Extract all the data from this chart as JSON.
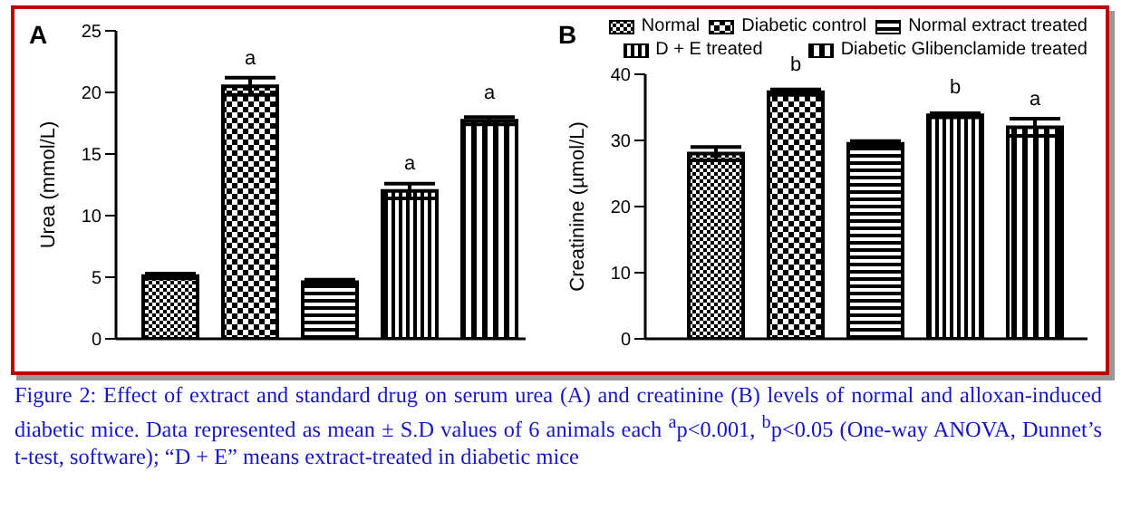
{
  "chart_data": [
    {
      "type": "bar",
      "title": "A",
      "ylabel": "Urea (mmol/L)",
      "categories": [
        null
      ],
      "ylim": [
        0,
        25
      ],
      "yticks": [
        0,
        5,
        10,
        15,
        20,
        25
      ],
      "legend": false,
      "grid": false,
      "series": [
        {
          "color": "#000000",
          "values": [
            5.1
          ],
          "errors": [
            0.2
          ]
        },
        {
          "color": "#000000",
          "values": [
            20.5
          ],
          "errors": [
            0.7
          ],
          "value_labels": [
            "a"
          ]
        },
        {
          "color": "#000000",
          "values": [
            4.6
          ],
          "errors": [
            0.2
          ]
        },
        {
          "color": "#000000",
          "values": [
            12.0
          ],
          "errors": [
            0.6
          ],
          "value_labels": [
            "a"
          ]
        },
        {
          "color": "#000000",
          "values": [
            17.7
          ],
          "errors": [
            0.3
          ],
          "value_labels": [
            "a"
          ]
        }
      ],
      "annotations": [
        "Figure 2: Effect of extract and standard drug on serum urea (A) and creatinine (B) levels of normal and alloxan-induced diabetic mice. Data represented as mean ± S.D values of 6 animals each $^{a}$p<0.001, $^{b}$p<0.05 (One-way ANOVA, Dunnet’s t-test, software); “D + E” means extract-treated in diabetic mice"
      ]
    },
    {
      "type": "bar",
      "title": "B",
      "ylabel": "Creatinine (µmol/L)",
      "categories": [
        null
      ],
      "ylim": [
        0,
        40
      ],
      "yticks": [
        0,
        10,
        20,
        30,
        40
      ],
      "legend": "top",
      "grid": false,
      "series": [
        {
          "name": "Normal",
          "color": "#000000",
          "values": [
            28.0
          ],
          "errors": [
            1.0
          ]
        },
        {
          "name": "Diabetic control",
          "color": "#000000",
          "values": [
            37.3
          ],
          "errors": [
            0.4
          ],
          "value_labels": [
            "b"
          ]
        },
        {
          "name": "Normal extract treated",
          "color": "#000000",
          "values": [
            29.5
          ],
          "errors": [
            0.4
          ]
        },
        {
          "name": "D + E treated",
          "color": "#000000",
          "values": [
            33.8
          ],
          "errors": [
            0.3
          ],
          "value_labels": [
            "b"
          ]
        },
        {
          "name": "Diabetic Glibenclamide treated",
          "color": "#000000",
          "values": [
            32.0
          ],
          "errors": [
            1.3
          ],
          "value_labels": [
            "a"
          ]
        }
      ]
    }
  ]
}
